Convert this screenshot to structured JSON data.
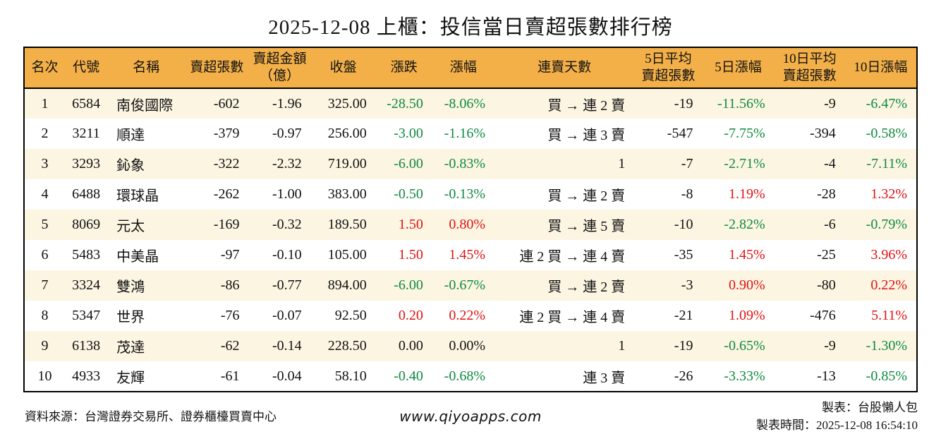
{
  "page": {
    "title": "2025-12-08 上櫃：投信當日賣超張數排行榜"
  },
  "table": {
    "headers": [
      "名次",
      "代號",
      "名稱",
      "賣超張數",
      "賣超金額\n（億）",
      "收盤",
      "漲跌",
      "漲幅",
      "連賣天數",
      "5日平均\n賣超張數",
      "5日漲幅",
      "10日平均\n賣超張數",
      "10日漲幅"
    ],
    "rows": [
      {
        "rank": "1",
        "code": "6584",
        "name": "南俊國際",
        "sell_shares": "-602",
        "sell_amount": "-1.96",
        "close": "325.00",
        "change": "-28.50",
        "change_pct": "-8.06%",
        "change_dir": "down",
        "streak": "買 → 連 2 賣",
        "avg5": "-19",
        "pct5": "-11.56%",
        "pct5_dir": "down",
        "avg10": "-9",
        "pct10": "-6.47%",
        "pct10_dir": "down"
      },
      {
        "rank": "2",
        "code": "3211",
        "name": "順達",
        "sell_shares": "-379",
        "sell_amount": "-0.97",
        "close": "256.00",
        "change": "-3.00",
        "change_pct": "-1.16%",
        "change_dir": "down",
        "streak": "買 → 連 3 賣",
        "avg5": "-547",
        "pct5": "-7.75%",
        "pct5_dir": "down",
        "avg10": "-394",
        "pct10": "-0.58%",
        "pct10_dir": "down"
      },
      {
        "rank": "3",
        "code": "3293",
        "name": "鈊象",
        "sell_shares": "-322",
        "sell_amount": "-2.32",
        "close": "719.00",
        "change": "-6.00",
        "change_pct": "-0.83%",
        "change_dir": "down",
        "streak": "1",
        "avg5": "-7",
        "pct5": "-2.71%",
        "pct5_dir": "down",
        "avg10": "-4",
        "pct10": "-7.11%",
        "pct10_dir": "down"
      },
      {
        "rank": "4",
        "code": "6488",
        "name": "環球晶",
        "sell_shares": "-262",
        "sell_amount": "-1.00",
        "close": "383.00",
        "change": "-0.50",
        "change_pct": "-0.13%",
        "change_dir": "down",
        "streak": "買 → 連 2 賣",
        "avg5": "-8",
        "pct5": "1.19%",
        "pct5_dir": "up",
        "avg10": "-28",
        "pct10": "1.32%",
        "pct10_dir": "up"
      },
      {
        "rank": "5",
        "code": "8069",
        "name": "元太",
        "sell_shares": "-169",
        "sell_amount": "-0.32",
        "close": "189.50",
        "change": "1.50",
        "change_pct": "0.80%",
        "change_dir": "up",
        "streak": "買 → 連 5 賣",
        "avg5": "-10",
        "pct5": "-2.82%",
        "pct5_dir": "down",
        "avg10": "-6",
        "pct10": "-0.79%",
        "pct10_dir": "down"
      },
      {
        "rank": "6",
        "code": "5483",
        "name": "中美晶",
        "sell_shares": "-97",
        "sell_amount": "-0.10",
        "close": "105.00",
        "change": "1.50",
        "change_pct": "1.45%",
        "change_dir": "up",
        "streak": "連 2 買 → 連 4 賣",
        "avg5": "-35",
        "pct5": "1.45%",
        "pct5_dir": "up",
        "avg10": "-25",
        "pct10": "3.96%",
        "pct10_dir": "up"
      },
      {
        "rank": "7",
        "code": "3324",
        "name": "雙鴻",
        "sell_shares": "-86",
        "sell_amount": "-0.77",
        "close": "894.00",
        "change": "-6.00",
        "change_pct": "-0.67%",
        "change_dir": "down",
        "streak": "買 → 連 2 賣",
        "avg5": "-3",
        "pct5": "0.90%",
        "pct5_dir": "up",
        "avg10": "-80",
        "pct10": "0.22%",
        "pct10_dir": "up"
      },
      {
        "rank": "8",
        "code": "5347",
        "name": "世界",
        "sell_shares": "-76",
        "sell_amount": "-0.07",
        "close": "92.50",
        "change": "0.20",
        "change_pct": "0.22%",
        "change_dir": "up",
        "streak": "連 2 買 → 連 4 賣",
        "avg5": "-21",
        "pct5": "1.09%",
        "pct5_dir": "up",
        "avg10": "-476",
        "pct10": "5.11%",
        "pct10_dir": "up"
      },
      {
        "rank": "9",
        "code": "6138",
        "name": "茂達",
        "sell_shares": "-62",
        "sell_amount": "-0.14",
        "close": "228.50",
        "change": "0.00",
        "change_pct": "0.00%",
        "change_dir": "flat",
        "streak": "1",
        "avg5": "-19",
        "pct5": "-0.65%",
        "pct5_dir": "down",
        "avg10": "-9",
        "pct10": "-1.30%",
        "pct10_dir": "down"
      },
      {
        "rank": "10",
        "code": "4933",
        "name": "友輝",
        "sell_shares": "-61",
        "sell_amount": "-0.04",
        "close": "58.10",
        "change": "-0.40",
        "change_pct": "-0.68%",
        "change_dir": "down",
        "streak": "連 3 賣",
        "avg5": "-26",
        "pct5": "-3.33%",
        "pct5_dir": "down",
        "avg10": "-13",
        "pct10": "-0.85%",
        "pct10_dir": "down"
      }
    ]
  },
  "footer": {
    "source": "資料來源：台灣證券交易所、證券櫃檯買賣中心",
    "url": "www.qiyoapps.com",
    "maker": "製表：台股懶人包",
    "time": "製表時間：2025-12-08 16:54:10"
  },
  "colors": {
    "header_bg": "#F3B049",
    "row_alt_bg": "#FCF5E2",
    "up_red": "#E01111",
    "down_green": "#0E8A3E",
    "text": "#111111",
    "border": "#000000"
  }
}
